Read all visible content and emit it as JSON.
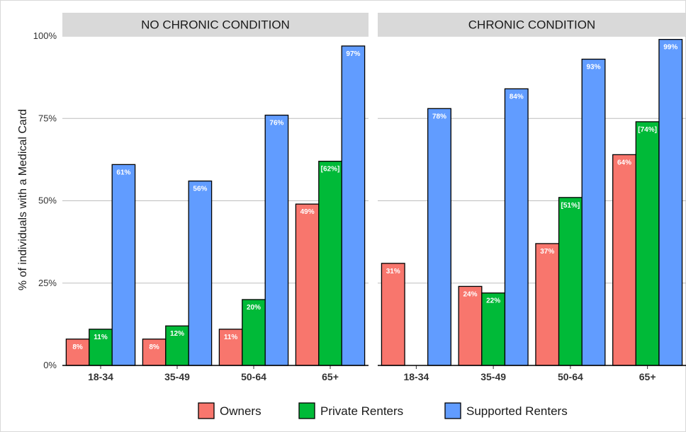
{
  "chart_data": {
    "type": "bar",
    "ylabel": "% of individuals with a Medical Card",
    "xlabel": "",
    "ylim": [
      0,
      100
    ],
    "y_ticks": [
      "0%",
      "25%",
      "50%",
      "75%",
      "100%"
    ],
    "y_tick_values": [
      0,
      25,
      50,
      75,
      100
    ],
    "categories": [
      "18-34",
      "35-49",
      "50-64",
      "65+"
    ],
    "grid": true,
    "legend_position": "bottom",
    "series_names": [
      "Owners",
      "Private Renters",
      "Supported Renters"
    ],
    "series_colors": [
      "#f8766d",
      "#00ba38",
      "#619cff"
    ],
    "facets": [
      {
        "title": "NO CHRONIC CONDITION",
        "series": [
          {
            "name": "Owners",
            "values": [
              8,
              8,
              11,
              49
            ],
            "labels": [
              "8%",
              "8%",
              "11%",
              "49%"
            ]
          },
          {
            "name": "Private Renters",
            "values": [
              11,
              12,
              20,
              62
            ],
            "labels": [
              "11%",
              "12%",
              "20%",
              "[62%]"
            ]
          },
          {
            "name": "Supported Renters",
            "values": [
              61,
              56,
              76,
              97
            ],
            "labels": [
              "61%",
              "56%",
              "76%",
              "97%"
            ]
          }
        ]
      },
      {
        "title": "CHRONIC CONDITION",
        "series": [
          {
            "name": "Owners",
            "values": [
              31,
              24,
              37,
              64
            ],
            "labels": [
              "31%",
              "24%",
              "37%",
              "64%"
            ]
          },
          {
            "name": "Private Renters",
            "values": [
              null,
              22,
              51,
              74
            ],
            "labels": [
              "",
              "22%",
              "[51%]",
              "[74%]"
            ]
          },
          {
            "name": "Supported Renters",
            "values": [
              78,
              84,
              93,
              99
            ],
            "labels": [
              "78%",
              "84%",
              "93%",
              "99%"
            ]
          }
        ]
      }
    ]
  }
}
